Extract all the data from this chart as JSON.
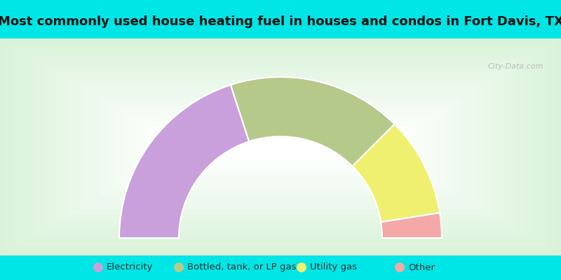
{
  "title": "Most commonly used house heating fuel in houses and condos in Fort Davis, TX",
  "segments": [
    {
      "label": "Electricity",
      "value": 40,
      "color": "#c9a0dc"
    },
    {
      "label": "Bottled, tank, or LP gas",
      "value": 35,
      "color": "#b5c98a"
    },
    {
      "label": "Utility gas",
      "value": 20,
      "color": "#f0f070"
    },
    {
      "label": "Other",
      "value": 5,
      "color": "#f5a8a8"
    }
  ],
  "bg_color": "#00e5e5",
  "chart_bg_outer": "#c2e8c8",
  "chart_bg_inner": "#e8f5e8",
  "title_fontsize": 13,
  "legend_fontsize": 9.5,
  "watermark": "City-Data.com"
}
